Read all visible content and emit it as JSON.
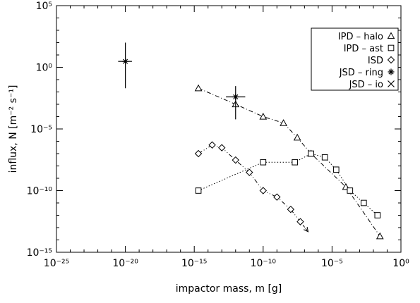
{
  "chart_data": {
    "type": "scatter",
    "title": "",
    "xlabel": "impactor mass, m [g]",
    "ylabel": "influx, N [m⁻² s⁻¹]",
    "x_scale": "log",
    "y_scale": "log",
    "xlim": [
      1e-25,
      1
    ],
    "ylim": [
      1e-15,
      100000.0
    ],
    "x_ticks": [
      {
        "value": 1e-25,
        "label": "10⁻²⁵"
      },
      {
        "value": 1e-20,
        "label": "10⁻²⁰"
      },
      {
        "value": 1e-15,
        "label": "10⁻¹⁵"
      },
      {
        "value": 1e-10,
        "label": "10⁻¹⁰"
      },
      {
        "value": 1e-05,
        "label": "10⁻⁵"
      },
      {
        "value": 1,
        "label": "10⁰"
      }
    ],
    "y_ticks": [
      {
        "value": 100000.0,
        "label": "10⁵"
      },
      {
        "value": 1,
        "label": "10⁰"
      },
      {
        "value": 1e-05,
        "label": "10⁻⁵"
      },
      {
        "value": 1e-10,
        "label": "10⁻¹⁰"
      },
      {
        "value": 1e-15,
        "label": "10⁻¹⁵"
      }
    ],
    "grid": false,
    "legend_position": "top-right",
    "series": [
      {
        "name": "IPD – halo",
        "marker": "triangle",
        "line_style": "dash-dot",
        "x": [
          2e-15,
          1e-12,
          1e-10,
          3e-09,
          3e-08,
          3e-07,
          0.0001,
          0.03
        ],
        "y": [
          0.02,
          0.001,
          0.0001,
          3e-05,
          2e-06,
          1e-07,
          2e-10,
          2e-14
        ]
      },
      {
        "name": "IPD – ast",
        "marker": "square",
        "line_style": "dotted",
        "x": [
          2e-15,
          1e-10,
          2e-08,
          3e-07,
          3e-06,
          2e-05,
          0.0002,
          0.002,
          0.02
        ],
        "y": [
          1e-10,
          2e-08,
          2e-08,
          1e-07,
          5e-08,
          5e-09,
          1e-10,
          1e-11,
          1e-12
        ]
      },
      {
        "name": "ISD",
        "marker": "diamond",
        "line_style": "dash-dot-dot",
        "arrow_end": true,
        "x": [
          2e-15,
          2e-14,
          1e-13,
          1e-12,
          1e-11,
          1e-10,
          1e-09,
          1e-08,
          5e-08
        ],
        "y": [
          1e-07,
          5e-07,
          3e-07,
          3e-08,
          3e-09,
          1e-10,
          3e-11,
          3e-12,
          3e-13
        ]
      },
      {
        "name": "JSD – ring",
        "marker": "asterisk",
        "line_style": "none",
        "x": [
          1e-20,
          1e-12
        ],
        "y": [
          3,
          0.004
        ],
        "x_err": [
          [
            3e-21,
            3e-20
          ],
          [
            2e-13,
            5e-12
          ]
        ],
        "y_err": [
          [
            0.02,
            100
          ],
          [
            6e-05,
            0.03
          ]
        ]
      }
    ],
    "legend": [
      {
        "label": "IPD – halo",
        "symbol": "triangle"
      },
      {
        "label": "IPD – ast",
        "symbol": "square"
      },
      {
        "label": "ISD",
        "symbol": "diamond"
      },
      {
        "label": "JSD – ring",
        "symbol": "asterisk"
      },
      {
        "label": "JSD – io",
        "symbol": "cross"
      }
    ]
  }
}
